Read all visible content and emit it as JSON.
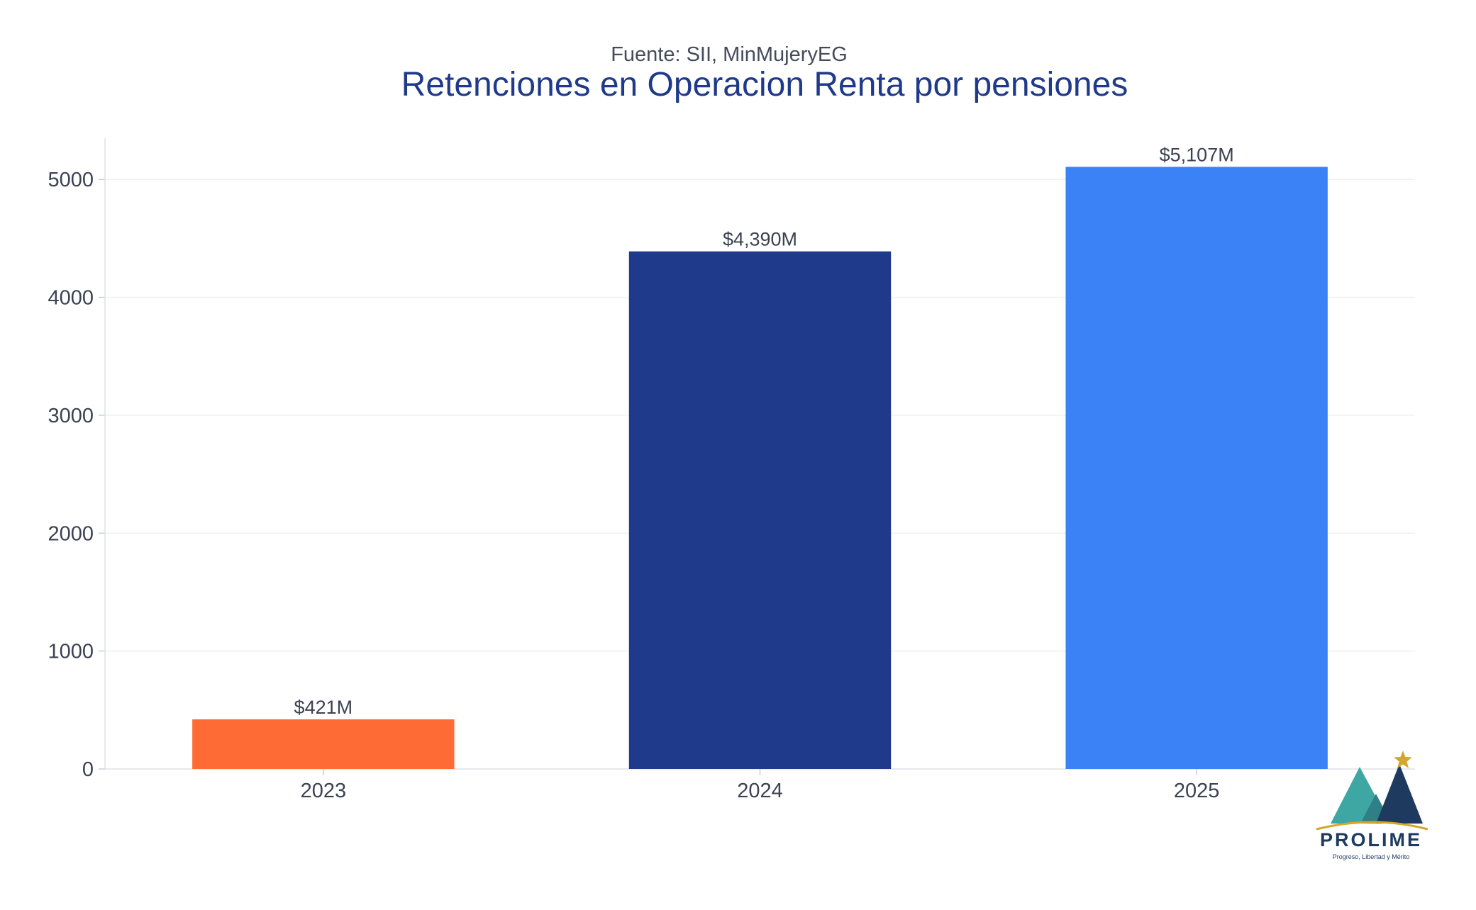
{
  "chart_data": {
    "type": "bar",
    "subtitle": "Fuente: SII, MinMujeryEG",
    "title": "Retenciones en Operacion Renta por pensiones",
    "categories": [
      "2023",
      "2024",
      "2025"
    ],
    "values": [
      421,
      4390,
      5107
    ],
    "data_labels": [
      "$421M",
      "$4,390M",
      "$5,107M"
    ],
    "colors": [
      "#ff6b35",
      "#1f3a8a",
      "#3b82f6"
    ],
    "xlabel": "",
    "ylabel": "",
    "ylim": [
      0,
      5350
    ],
    "yticks": [
      0,
      1000,
      2000,
      3000,
      4000,
      5000
    ],
    "ytick_labels": [
      "0",
      "1000",
      "2000",
      "3000",
      "4000",
      "5000"
    ],
    "grid": true,
    "legend": "none"
  },
  "logo": {
    "name": "PROLIME",
    "tagline": "Progreso, Libertad y Mérito",
    "icon": "mountain-star-icon",
    "colors": {
      "peak_left": "#3fa7a3",
      "peak_mid": "#2e7f86",
      "peak_right": "#1e3a5f",
      "star": "#d4a72c",
      "arc": "#d4a72c"
    }
  }
}
